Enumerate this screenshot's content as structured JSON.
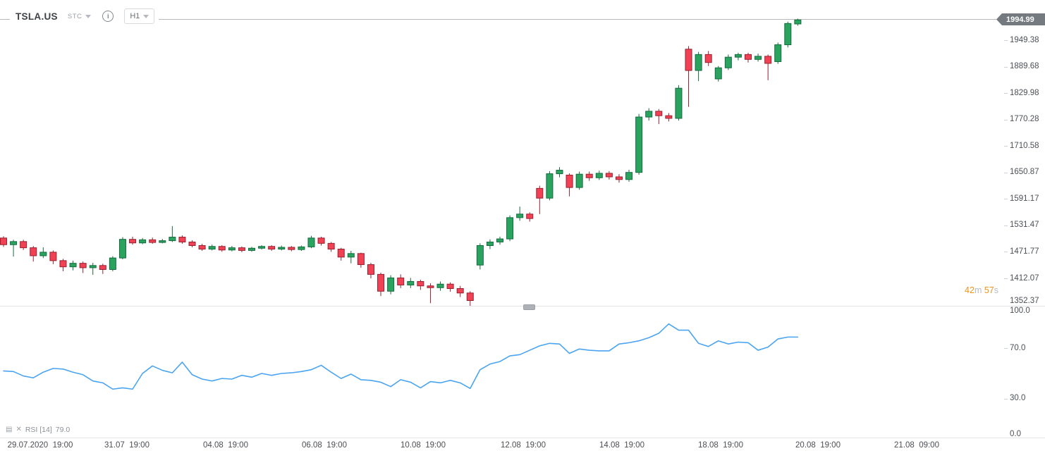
{
  "header": {
    "symbol": "TSLA.US",
    "symbol_type": "STC",
    "info_icon_glyph": "i",
    "timeframe": "H1"
  },
  "price_axis": {
    "current_price": "1994.99",
    "ticks": [
      "1949.38",
      "1889.68",
      "1829.98",
      "1770.28",
      "1710.58",
      "1650.87",
      "1591.17",
      "1531.47",
      "1471.77",
      "1412.07",
      "1352.37"
    ]
  },
  "rsi_axis": {
    "ticks": [
      "100.0",
      "70.0",
      "30.0",
      "0.0"
    ]
  },
  "countdown": {
    "minutes": "42",
    "minutes_unit": "m",
    "seconds": "57",
    "seconds_unit": "s"
  },
  "indicator_legend": {
    "label": "RSI [14]",
    "value": "79.0"
  },
  "time_axis": {
    "labels": [
      "29.07.2020  19:00",
      "31.07  19:00",
      "04.08  19:00",
      "06.08  19:00",
      "10.08  19:00",
      "12.08  19:00",
      "14.08  19:00",
      "18.08  19:00",
      "20.08  19:00",
      "21.08  09:00"
    ]
  },
  "colors": {
    "bull_fill": "#2aa35f",
    "bull_stroke": "#156b3f",
    "bear_fill": "#f04155",
    "bear_stroke": "#97212f",
    "rsi_line": "#4aa4f1",
    "price_line": "#b5b9bd",
    "price_tag_bg": "#747a80",
    "countdown_accent": "#f29318",
    "axis_text": "#4c5056",
    "separator": "#e2e4e7"
  },
  "chart_data": {
    "type": "candlestick",
    "title": "TSLA.US H1",
    "legend_position": "none",
    "grid": false,
    "price_panel": {
      "ylim": [
        1352.37,
        1994.99
      ],
      "current_price": 1994.99,
      "ohlc_order": [
        "open",
        "high",
        "low",
        "close"
      ],
      "candles": [
        [
          1503,
          1507,
          1483,
          1488
        ],
        [
          1488,
          1499,
          1461,
          1495
        ],
        [
          1495,
          1499,
          1476,
          1481
        ],
        [
          1481,
          1485,
          1450,
          1463
        ],
        [
          1463,
          1482,
          1458,
          1471
        ],
        [
          1471,
          1475,
          1444,
          1452
        ],
        [
          1452,
          1456,
          1428,
          1438
        ],
        [
          1438,
          1452,
          1430,
          1446
        ],
        [
          1446,
          1450,
          1424,
          1436
        ],
        [
          1436,
          1447,
          1420,
          1441
        ],
        [
          1441,
          1445,
          1422,
          1432
        ],
        [
          1432,
          1462,
          1428,
          1458
        ],
        [
          1458,
          1505,
          1455,
          1500
        ],
        [
          1500,
          1506,
          1488,
          1492
        ],
        [
          1492,
          1503,
          1489,
          1499
        ],
        [
          1499,
          1504,
          1490,
          1493
        ],
        [
          1493,
          1501,
          1491,
          1497
        ],
        [
          1497,
          1530,
          1494,
          1505
        ],
        [
          1505,
          1509,
          1490,
          1494
        ],
        [
          1494,
          1498,
          1482,
          1486
        ],
        [
          1486,
          1490,
          1474,
          1478
        ],
        [
          1478,
          1488,
          1475,
          1484
        ],
        [
          1484,
          1487,
          1472,
          1476
        ],
        [
          1476,
          1485,
          1473,
          1481
        ],
        [
          1481,
          1484,
          1471,
          1475
        ],
        [
          1475,
          1483,
          1472,
          1480
        ],
        [
          1480,
          1487,
          1477,
          1484
        ],
        [
          1484,
          1487,
          1474,
          1478
        ],
        [
          1478,
          1486,
          1475,
          1482
        ],
        [
          1482,
          1485,
          1473,
          1477
        ],
        [
          1477,
          1486,
          1474,
          1483
        ],
        [
          1483,
          1508,
          1480,
          1503
        ],
        [
          1503,
          1506,
          1486,
          1491
        ],
        [
          1491,
          1494,
          1472,
          1478
        ],
        [
          1478,
          1481,
          1452,
          1460
        ],
        [
          1460,
          1474,
          1446,
          1468
        ],
        [
          1468,
          1470,
          1436,
          1443
        ],
        [
          1443,
          1447,
          1412,
          1421
        ],
        [
          1421,
          1425,
          1372,
          1383
        ],
        [
          1383,
          1419,
          1376,
          1413
        ],
        [
          1413,
          1421,
          1390,
          1397
        ],
        [
          1397,
          1413,
          1390,
          1405
        ],
        [
          1405,
          1409,
          1386,
          1395
        ],
        [
          1395,
          1401,
          1356,
          1391
        ],
        [
          1391,
          1405,
          1384,
          1399
        ],
        [
          1399,
          1403,
          1382,
          1389
        ],
        [
          1389,
          1395,
          1370,
          1379
        ],
        [
          1379,
          1383,
          1350,
          1362
        ],
        [
          1442,
          1491,
          1432,
          1486
        ],
        [
          1486,
          1500,
          1478,
          1494
        ],
        [
          1494,
          1506,
          1488,
          1501
        ],
        [
          1501,
          1554,
          1496,
          1549
        ],
        [
          1549,
          1574,
          1542,
          1557
        ],
        [
          1557,
          1561,
          1540,
          1547
        ],
        [
          1615,
          1621,
          1557,
          1593
        ],
        [
          1593,
          1654,
          1588,
          1648
        ],
        [
          1648,
          1663,
          1640,
          1656
        ],
        [
          1645,
          1649,
          1597,
          1617
        ],
        [
          1617,
          1653,
          1612,
          1647
        ],
        [
          1647,
          1653,
          1632,
          1639
        ],
        [
          1639,
          1655,
          1634,
          1649
        ],
        [
          1649,
          1654,
          1635,
          1641
        ],
        [
          1641,
          1647,
          1628,
          1635
        ],
        [
          1635,
          1657,
          1630,
          1651
        ],
        [
          1651,
          1783,
          1646,
          1776
        ],
        [
          1776,
          1796,
          1768,
          1789
        ],
        [
          1789,
          1794,
          1760,
          1779
        ],
        [
          1779,
          1785,
          1766,
          1773
        ],
        [
          1773,
          1848,
          1768,
          1841
        ],
        [
          1929,
          1936,
          1799,
          1881
        ],
        [
          1881,
          1923,
          1857,
          1917
        ],
        [
          1917,
          1925,
          1891,
          1899
        ],
        [
          1862,
          1891,
          1856,
          1887
        ],
        [
          1887,
          1917,
          1882,
          1911
        ],
        [
          1911,
          1921,
          1904,
          1917
        ],
        [
          1917,
          1921,
          1899,
          1906
        ],
        [
          1906,
          1919,
          1901,
          1913
        ],
        [
          1913,
          1917,
          1859,
          1897
        ],
        [
          1901,
          1944,
          1896,
          1939
        ],
        [
          1939,
          1991,
          1933,
          1987
        ],
        [
          1986,
          1998,
          1982,
          1995
        ]
      ]
    },
    "rsi_panel": {
      "type": "line",
      "name": "RSI [14]",
      "last_value": 79.0,
      "ylim": [
        0,
        100
      ],
      "tick_values": [
        100.0,
        70.0,
        30.0,
        0.0
      ],
      "values": [
        52,
        51.5,
        48,
        46.5,
        51,
        54,
        53.5,
        51,
        49,
        44,
        42.5,
        37.5,
        38.5,
        37.5,
        50,
        56,
        52.5,
        50.5,
        59,
        49,
        45.5,
        44,
        46,
        45.5,
        48.5,
        47,
        50,
        48.5,
        50,
        50.5,
        51.5,
        53,
        56.5,
        51,
        46,
        49.5,
        45,
        44.5,
        43,
        39.5,
        45,
        43,
        38.5,
        43.5,
        42.5,
        44.5,
        42.5,
        38,
        53,
        57.5,
        59.5,
        64,
        65,
        68.5,
        72,
        74,
        73.5,
        66,
        69.5,
        68.5,
        68,
        68,
        73.5,
        74.5,
        76,
        78.5,
        82,
        89.5,
        84.5,
        84.5,
        74,
        71.5,
        76,
        73.5,
        75,
        74.5,
        68.5,
        71,
        77.5,
        79,
        79
      ]
    }
  }
}
